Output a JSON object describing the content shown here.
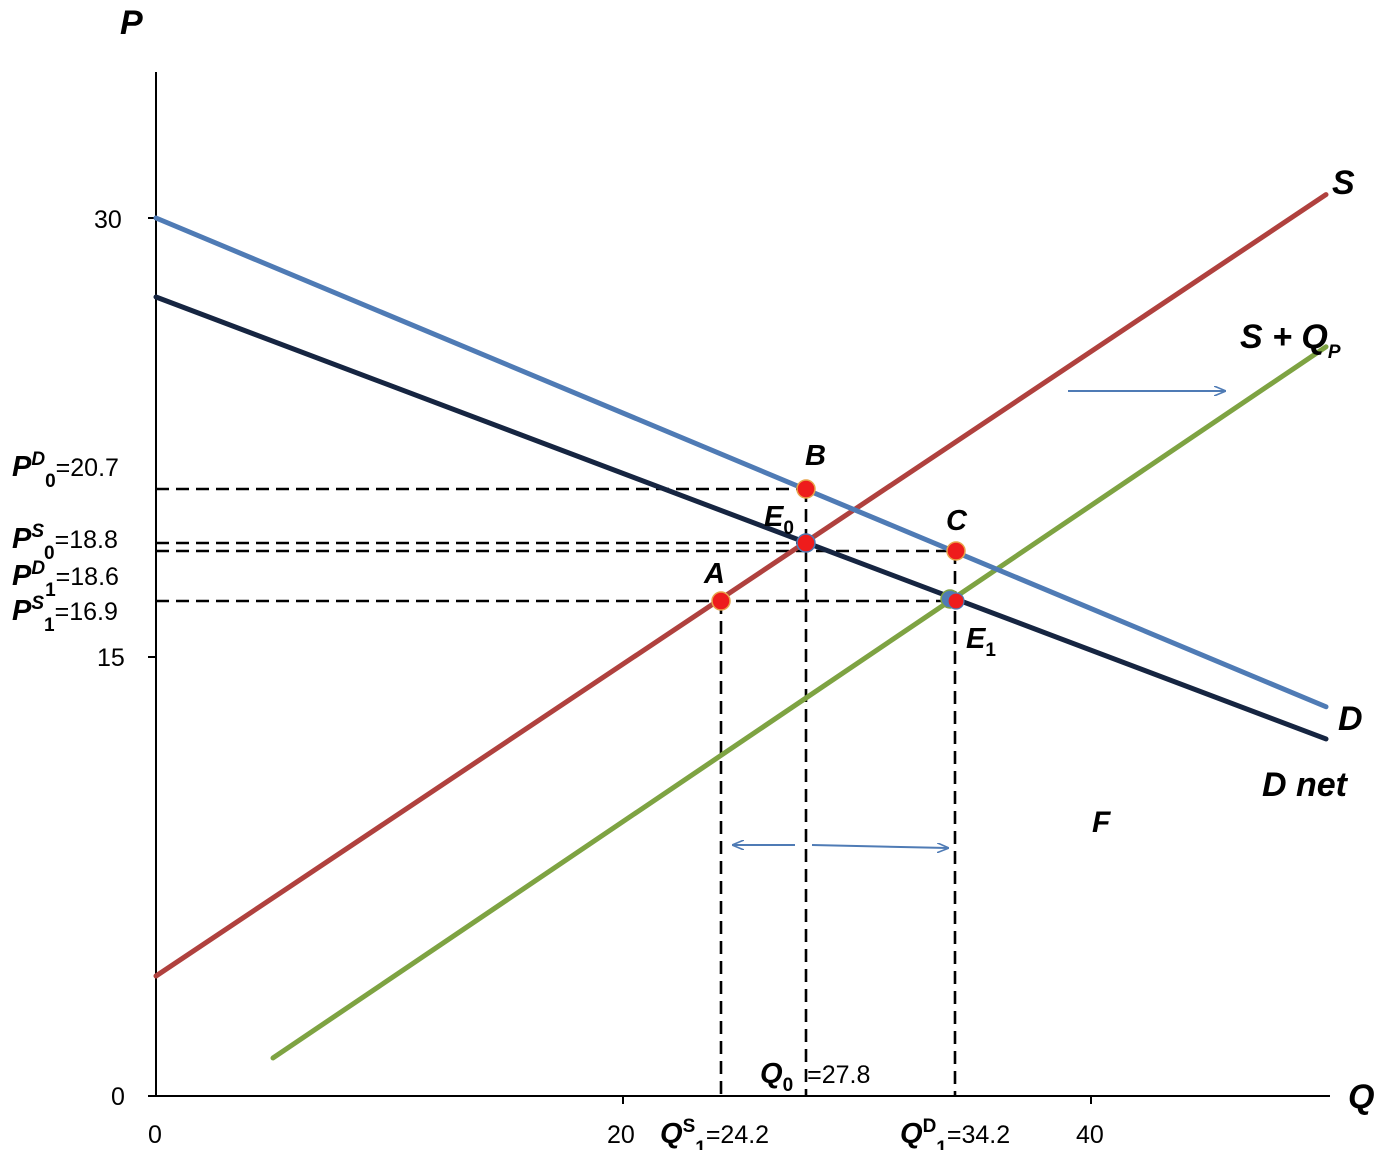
{
  "chart_data": {
    "type": "line",
    "axes": {
      "x_label": "Q",
      "y_label": "P",
      "xlim": [
        0,
        50
      ],
      "ylim": [
        0,
        36
      ],
      "x_ticks": [
        "0",
        "20",
        "40"
      ],
      "y_ticks": [
        "0",
        "15",
        "30"
      ]
    },
    "series": [
      {
        "name": "S",
        "color": "#b0413e",
        "points": [
          [
            0,
            4.1
          ],
          [
            50,
            30.8
          ]
        ]
      },
      {
        "name": "S + Q",
        "name_sub": "P",
        "color": "#7ea342",
        "points": [
          [
            5,
            1.3
          ],
          [
            50,
            25.6
          ]
        ]
      },
      {
        "name": "D",
        "color": "#4f7bb5",
        "points": [
          [
            0,
            30
          ],
          [
            50,
            13.3
          ]
        ]
      },
      {
        "name": "D net",
        "color": "#162541",
        "points": [
          [
            0,
            27.3
          ],
          [
            50,
            12.2
          ]
        ]
      }
    ],
    "points": [
      {
        "label": "A",
        "x": 24.2,
        "y": 16.9
      },
      {
        "label": "B",
        "x": 27.8,
        "y": 20.7
      },
      {
        "label": "C",
        "x": 34.2,
        "y": 18.6
      },
      {
        "label": "E",
        "sub": "0",
        "x": 27.8,
        "y": 18.8
      },
      {
        "label": "E",
        "sub": "1",
        "x": 34.2,
        "y": 16.9
      }
    ],
    "price_labels": [
      {
        "var": "P",
        "sup": "D",
        "sub": "0",
        "value": "=20.7",
        "y": 20.7
      },
      {
        "var": "P",
        "sup": "S",
        "sub": "0",
        "value": "=18.8",
        "y": 18.8
      },
      {
        "var": "P",
        "sup": "D",
        "sub": "1",
        "value": "=18.6",
        "y": 18.6
      },
      {
        "var": "P",
        "sup": "S",
        "sub": "1",
        "value": "=16.9",
        "y": 16.9
      }
    ],
    "quantity_labels": [
      {
        "var": "Q",
        "sup": "S",
        "sub": "1",
        "value": "=24.2",
        "x": 24.2
      },
      {
        "var": "Q",
        "sub": "0",
        "value": "=27.8",
        "x": 27.8
      },
      {
        "var": "Q",
        "sup": "D",
        "sub": "1",
        "value": "=34.2",
        "x": 34.2
      }
    ],
    "annotations": [
      "F"
    ]
  }
}
